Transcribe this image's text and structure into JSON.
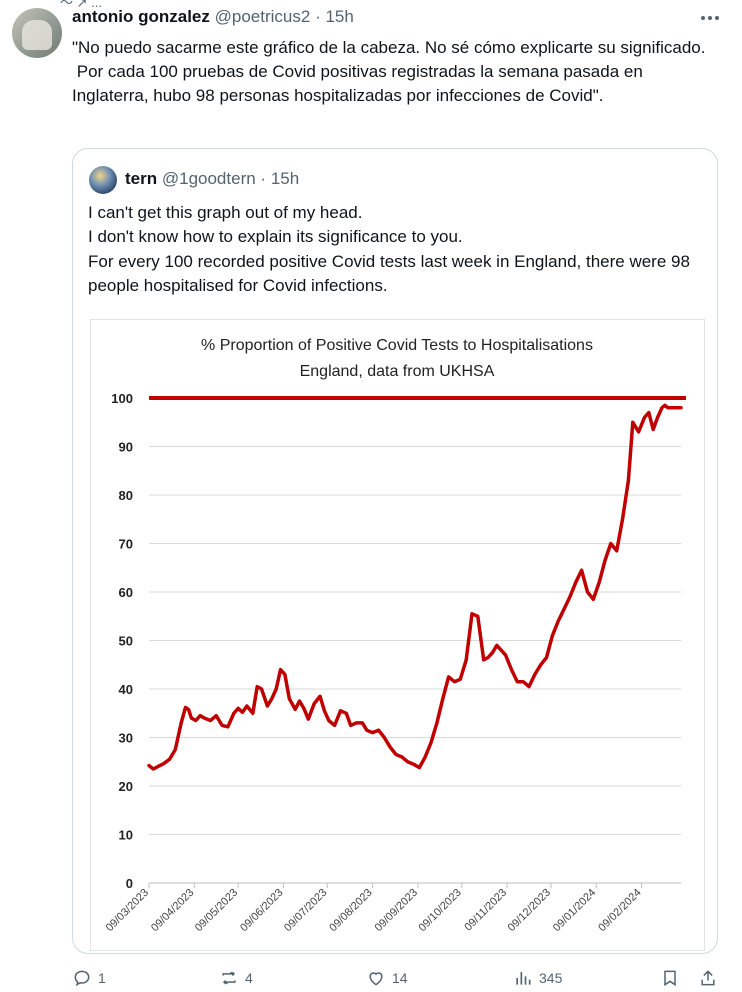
{
  "post": {
    "name": "antonio gonzalez",
    "handle": "@poetricus2",
    "time": "15h",
    "text": "\"No puedo sacarme este gráfico de la cabeza. No sé cómo explicarte su significado.\n Por cada 100 pruebas de Covid positivas registradas la semana pasada en Inglaterra, hubo 98 personas hospitalizadas por infecciones de Covid\"."
  },
  "quote": {
    "name": "tern",
    "handle": "@1goodtern",
    "time": "15h",
    "text": "I can't get this graph out of my head.\nI don't know how to explain its significance to you.\nFor every 100 recorded positive Covid tests last week in England, there were 98 people hospitalised for Covid infections."
  },
  "chart_data": {
    "type": "line",
    "title": "% Proportion of Positive Covid Tests to Hospitalisations",
    "subtitle": "England, data from UKHSA",
    "xlabel": "",
    "ylabel": "",
    "ylim": [
      0,
      100
    ],
    "yticks": [
      0,
      10,
      20,
      30,
      40,
      50,
      60,
      70,
      80,
      90,
      100
    ],
    "xtick_labels": [
      "09/03/2023",
      "09/04/2023",
      "09/05/2023",
      "09/06/2023",
      "09/07/2023",
      "09/08/2023",
      "09/09/2023",
      "09/10/2023",
      "09/11/2023",
      "09/12/2023",
      "09/01/2024",
      "09/02/2024"
    ],
    "grid": true,
    "reference_line": {
      "value": 100,
      "color": "#c00000"
    },
    "series_color": "#c00000",
    "x": [
      "2023-03-09",
      "2023-03-12",
      "2023-03-15",
      "2023-03-19",
      "2023-03-23",
      "2023-03-27",
      "2023-03-31",
      "2023-04-03",
      "2023-04-05",
      "2023-04-07",
      "2023-04-10",
      "2023-04-13",
      "2023-04-16",
      "2023-04-20",
      "2023-04-24",
      "2023-04-28",
      "2023-05-02",
      "2023-05-06",
      "2023-05-09",
      "2023-05-12",
      "2023-05-15",
      "2023-05-19",
      "2023-05-22",
      "2023-05-25",
      "2023-05-29",
      "2023-06-01",
      "2023-06-04",
      "2023-06-07",
      "2023-06-10",
      "2023-06-13",
      "2023-06-17",
      "2023-06-20",
      "2023-06-23",
      "2023-06-26",
      "2023-06-30",
      "2023-07-04",
      "2023-07-07",
      "2023-07-10",
      "2023-07-14",
      "2023-07-18",
      "2023-07-22",
      "2023-07-25",
      "2023-07-29",
      "2023-08-02",
      "2023-08-05",
      "2023-08-09",
      "2023-08-13",
      "2023-08-17",
      "2023-08-21",
      "2023-08-25",
      "2023-08-29",
      "2023-09-02",
      "2023-09-06",
      "2023-09-10",
      "2023-09-14",
      "2023-09-18",
      "2023-09-22",
      "2023-09-26",
      "2023-09-30",
      "2023-10-04",
      "2023-10-08",
      "2023-10-12",
      "2023-10-16",
      "2023-10-20",
      "2023-10-24",
      "2023-10-27",
      "2023-10-30",
      "2023-11-02",
      "2023-11-05",
      "2023-11-08",
      "2023-11-12",
      "2023-11-16",
      "2023-11-20",
      "2023-11-24",
      "2023-11-28",
      "2023-12-02",
      "2023-12-06",
      "2023-12-10",
      "2023-12-14",
      "2023-12-18",
      "2023-12-22",
      "2023-12-26",
      "2023-12-30",
      "2024-01-03",
      "2024-01-07",
      "2024-01-11",
      "2024-01-15",
      "2024-01-19",
      "2024-01-23",
      "2024-01-27",
      "2024-01-31",
      "2024-02-03",
      "2024-02-07",
      "2024-02-11",
      "2024-02-14",
      "2024-02-17",
      "2024-02-20",
      "2024-02-23",
      "2024-02-25",
      "2024-02-27",
      "2024-02-29",
      "2024-03-02",
      "2024-03-04",
      "2024-03-06",
      "2024-03-07"
    ],
    "values": [
      24.2,
      23.5,
      24.0,
      24.6,
      25.5,
      27.5,
      33,
      36.2,
      35.8,
      34,
      33.5,
      34.5,
      34.0,
      33.5,
      34.5,
      32.5,
      32.2,
      35,
      36,
      35.2,
      36.5,
      35,
      40.5,
      40,
      36.5,
      38,
      40,
      44,
      43,
      38,
      35.8,
      37.5,
      36,
      33.8,
      37,
      38.5,
      35.5,
      33.5,
      32.5,
      35.5,
      35,
      32.5,
      33.0,
      33.0,
      31.5,
      31,
      31.5,
      30,
      28,
      26.5,
      26,
      25.0,
      24.5,
      23.8,
      26,
      29,
      33,
      38,
      42.5,
      41.5,
      42.0,
      46,
      55.5,
      55,
      46,
      46.5,
      47.5,
      49,
      48,
      47,
      44,
      41.5,
      41.5,
      40.5,
      43,
      45,
      46.5,
      51,
      54,
      56.5,
      59,
      62,
      64.5,
      60,
      58.5,
      62,
      66.5,
      70,
      68.5,
      75,
      83,
      95,
      93,
      96,
      97,
      93.5,
      96,
      98,
      98.5,
      98,
      98,
      98,
      98,
      98,
      98
    ]
  },
  "actions": {
    "replies": "1",
    "reposts": "4",
    "likes": "14",
    "views": "345"
  },
  "colors": {
    "accent_line": "#c00000",
    "muted_text": "#536471",
    "border": "#cfd9de"
  }
}
